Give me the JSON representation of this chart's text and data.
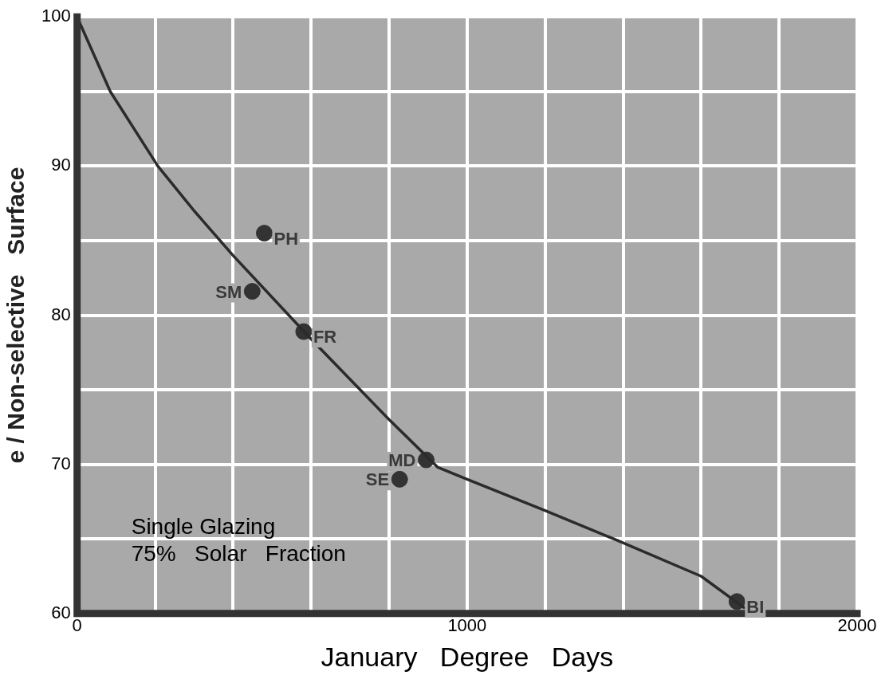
{
  "chart_data": {
    "type": "scatter",
    "xlabel": "January   Degree   Days",
    "ylabel": "e / Non-selective   Surface",
    "xlim": [
      0,
      2000
    ],
    "xticks": [
      0,
      {
        "value": 200,
        "label": null
      },
      {
        "value": 400,
        "label": null
      },
      {
        "value": 600,
        "label": null
      },
      {
        "value": 800,
        "label": null
      },
      1000,
      {
        "value": 1200,
        "label": null
      },
      {
        "value": 1400,
        "label": null
      },
      {
        "value": 1600,
        "label": null
      },
      {
        "value": 1800,
        "label": null
      },
      2000
    ],
    "ylim": [
      60,
      100
    ],
    "yticks": [
      60,
      {
        "value": 65,
        "label": null
      },
      70,
      {
        "value": 75,
        "label": null
      },
      80,
      {
        "value": 85,
        "label": null
      },
      90,
      {
        "value": 95,
        "label": null
      },
      100
    ],
    "grid": true,
    "legend": false,
    "marker": "circle",
    "series": [
      {
        "type": "line",
        "color": "#2b2b2b",
        "marker": "none",
        "line_style": "solid",
        "x": [
          0,
          85,
          207,
          300,
          400,
          600,
          800,
          925,
          1000,
          1200,
          1376,
          1600,
          1710
        ],
        "values": [
          100,
          95,
          90,
          87,
          84,
          78.4,
          73.0,
          69.8,
          69.0,
          66.9,
          65,
          62.5,
          60.4
        ]
      },
      {
        "type": "scatter",
        "color": "#333333",
        "x": [
          480,
          449,
          581,
          895,
          827,
          1692
        ],
        "values": [
          85.5,
          81.6,
          78.9,
          70.3,
          69.0,
          60.8
        ]
      }
    ],
    "annotations": [
      {
        "text": "PH",
        "x": 480,
        "y": 85.5
      },
      {
        "text": "SM",
        "x": 449,
        "y": 81.6
      },
      {
        "text": "FR",
        "x": 581,
        "y": 78.9
      },
      {
        "text": "MD",
        "x": 895,
        "y": 70.3
      },
      {
        "text": "SE",
        "x": 827,
        "y": 69.0
      },
      {
        "text": "BI",
        "x": 1692,
        "y": 60.8
      },
      "Single Glazing",
      "75%   Solar   Fraction"
    ]
  }
}
